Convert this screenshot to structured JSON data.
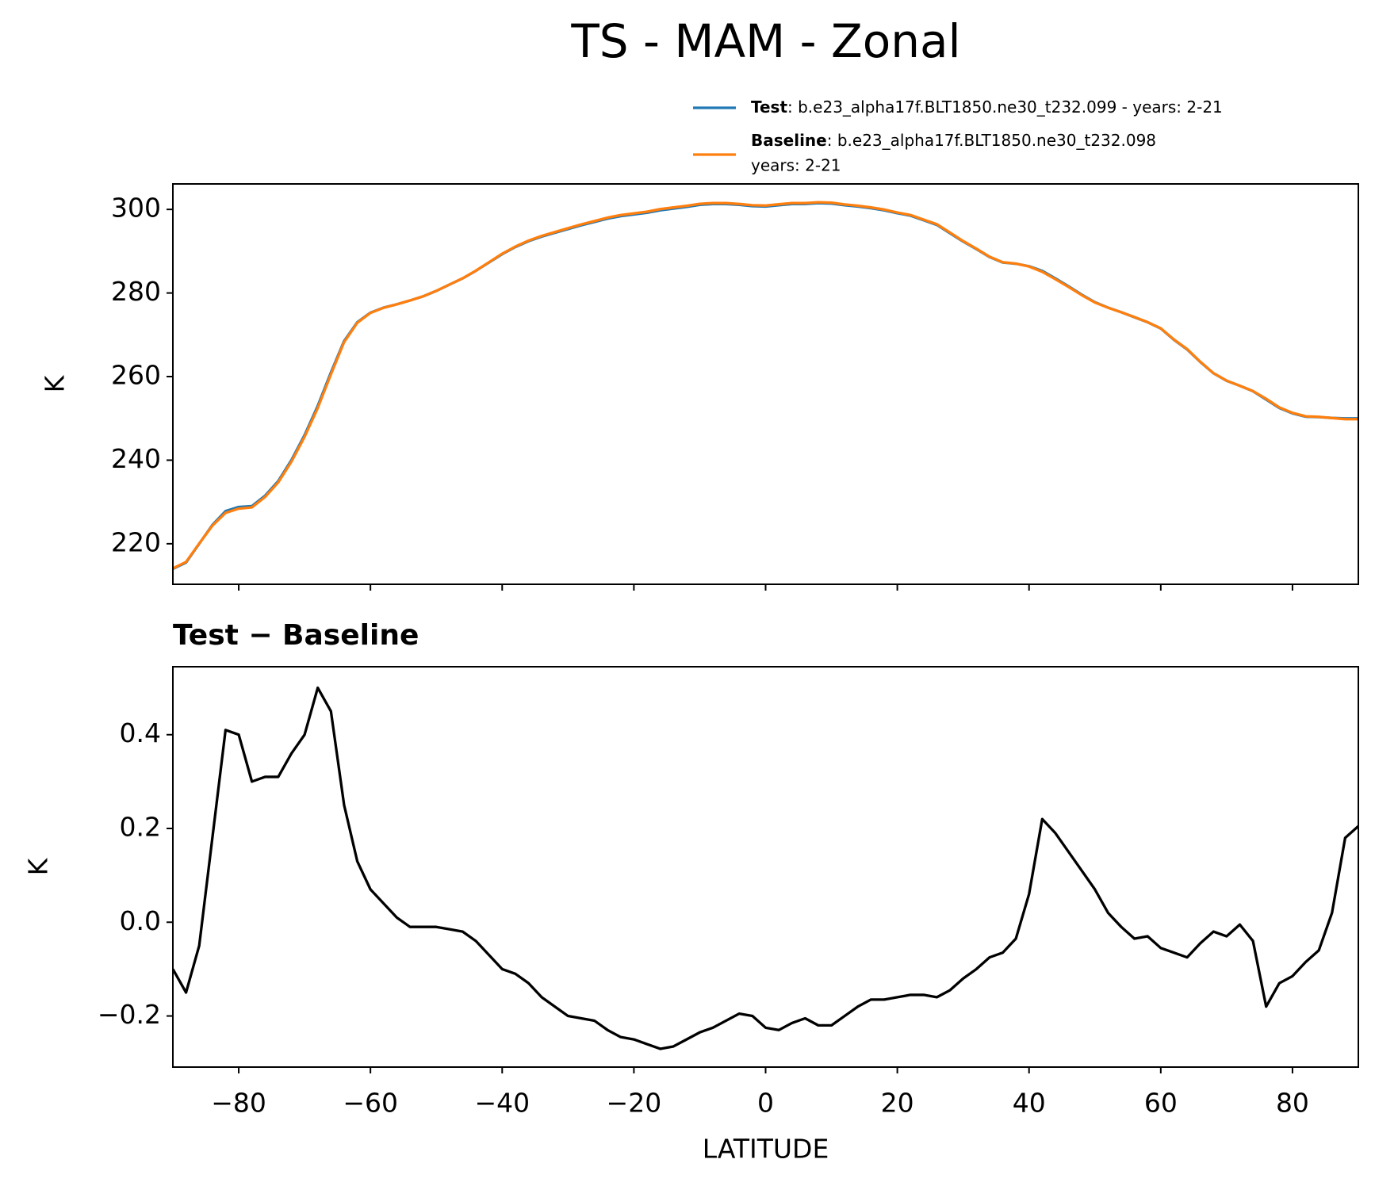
{
  "title": "TS - MAM - Zonal",
  "chart_data": [
    {
      "type": "line",
      "ylabel": "K",
      "xlim": [
        -90,
        90
      ],
      "ylim": [
        210.3,
        306.1
      ],
      "yticks": [
        220,
        240,
        260,
        280,
        300
      ],
      "x": [
        -90,
        -88,
        -86,
        -84,
        -82,
        -80,
        -78,
        -76,
        -74,
        -72,
        -70,
        -68,
        -66,
        -64,
        -62,
        -60,
        -58,
        -56,
        -54,
        -52,
        -50,
        -48,
        -46,
        -44,
        -42,
        -40,
        -38,
        -36,
        -34,
        -32,
        -30,
        -28,
        -26,
        -24,
        -22,
        -20,
        -18,
        -16,
        -14,
        -12,
        -10,
        -8,
        -6,
        -4,
        -2,
        0,
        2,
        4,
        6,
        8,
        10,
        12,
        14,
        16,
        18,
        20,
        22,
        24,
        26,
        28,
        30,
        32,
        34,
        36,
        38,
        40,
        42,
        44,
        46,
        48,
        50,
        52,
        54,
        56,
        58,
        60,
        62,
        64,
        66,
        68,
        70,
        72,
        74,
        76,
        78,
        80,
        82,
        84,
        86,
        88,
        90
      ],
      "series": [
        {
          "name": "Test",
          "details": [
            ": b.e23_alpha17f.BLT1850.ne30_t232.099 - years: 2-21"
          ],
          "color": "#1f77b4",
          "values": [
            214,
            215.5,
            220,
            224.5,
            227.8,
            228.8,
            229,
            231.5,
            235,
            240,
            246,
            253,
            261,
            268.5,
            273,
            275.3,
            276.5,
            277.3,
            278.2,
            279.2,
            280.5,
            282,
            283.5,
            285.3,
            287.3,
            289.3,
            291,
            292.4,
            293.5,
            294.4,
            295.3,
            296.2,
            297,
            297.8,
            298.4,
            298.8,
            299.2,
            299.8,
            300.2,
            300.6,
            301.1,
            301.3,
            301.3,
            301.1,
            300.8,
            300.7,
            301,
            301.3,
            301.3,
            301.5,
            301.4,
            301,
            300.7,
            300.3,
            299.8,
            299.1,
            298.5,
            297.4,
            296.3,
            294.3,
            292.3,
            290.5,
            288.6,
            287.3,
            287,
            286.4,
            285.3,
            283.5,
            281.6,
            279.6,
            277.8,
            276.5,
            275.4,
            274.2,
            273,
            271.5,
            268.8,
            266.5,
            263.5,
            260.8,
            259,
            257.8,
            256.5,
            254.5,
            252.5,
            251.2,
            250.4,
            250.3,
            250.1,
            250,
            250
          ]
        },
        {
          "name": "Baseline",
          "details": [
            ": b.e23_alpha17f.BLT1850.ne30_t232.098",
            "years: 2-21"
          ],
          "color": "#ff7f0e",
          "values": [
            214.1,
            215.65,
            220.05,
            224.32,
            227.39,
            228.4,
            228.7,
            231.19,
            234.69,
            239.64,
            245.6,
            252.5,
            260.55,
            268.25,
            272.87,
            275.23,
            276.46,
            277.29,
            278.21,
            279.21,
            280.51,
            282.02,
            283.52,
            285.34,
            287.37,
            289.4,
            291.11,
            292.53,
            293.66,
            294.58,
            295.5,
            296.41,
            297.21,
            298.03,
            298.65,
            299.05,
            299.46,
            300.07,
            300.47,
            300.85,
            301.34,
            301.53,
            301.51,
            301.3,
            301.0,
            300.93,
            301.23,
            301.52,
            301.51,
            301.72,
            301.62,
            301.2,
            300.88,
            300.47,
            299.97,
            299.26,
            298.66,
            297.56,
            296.46,
            294.45,
            292.42,
            290.6,
            288.68,
            287.37,
            287.04,
            286.34,
            285.08,
            283.31,
            281.45,
            279.49,
            277.73,
            276.48,
            275.41,
            274.24,
            273.03,
            271.56,
            268.87,
            266.58,
            263.55,
            260.82,
            259.03,
            257.81,
            256.54,
            254.68,
            252.63,
            251.32,
            250.49,
            250.36,
            250.08,
            249.82,
            249.8
          ]
        }
      ]
    },
    {
      "type": "line",
      "title": "Test − Baseline",
      "ylabel": "K",
      "xlabel": "LATITUDE",
      "xlim": [
        -90,
        90
      ],
      "xticks": [
        {
          "value": -80,
          "label": "−80"
        },
        {
          "value": -60,
          "label": "−60"
        },
        {
          "value": -40,
          "label": "−40"
        },
        {
          "value": -20,
          "label": "−20"
        },
        0,
        20,
        40,
        60,
        80
      ],
      "ylim": [
        -0.309,
        0.545
      ],
      "yticks": [
        {
          "value": -0.2,
          "label": "−0.2"
        },
        {
          "value": 0,
          "label": "0.0"
        },
        0.2,
        0.4
      ],
      "x": [
        -90,
        -88,
        -86,
        -84,
        -82,
        -80,
        -78,
        -76,
        -74,
        -72,
        -70,
        -68,
        -66,
        -64,
        -62,
        -60,
        -58,
        -56,
        -54,
        -52,
        -50,
        -48,
        -46,
        -44,
        -42,
        -40,
        -38,
        -36,
        -34,
        -32,
        -30,
        -28,
        -26,
        -24,
        -22,
        -20,
        -18,
        -16,
        -14,
        -12,
        -10,
        -8,
        -6,
        -4,
        -2,
        0,
        2,
        4,
        6,
        8,
        10,
        12,
        14,
        16,
        18,
        20,
        22,
        24,
        26,
        28,
        30,
        32,
        34,
        36,
        38,
        40,
        42,
        44,
        46,
        48,
        50,
        52,
        54,
        56,
        58,
        60,
        62,
        64,
        66,
        68,
        70,
        72,
        74,
        76,
        78,
        80,
        82,
        84,
        86,
        88,
        90
      ],
      "series": [
        {
          "color": "#000000",
          "values": [
            -0.1,
            -0.15,
            -0.05,
            0.18,
            0.41,
            0.4,
            0.3,
            0.31,
            0.31,
            0.36,
            0.4,
            0.5,
            0.45,
            0.25,
            0.13,
            0.07,
            0.04,
            0.01,
            -0.01,
            -0.01,
            -0.01,
            -0.015,
            -0.02,
            -0.04,
            -0.07,
            -0.1,
            -0.11,
            -0.13,
            -0.16,
            -0.18,
            -0.2,
            -0.205,
            -0.21,
            -0.23,
            -0.245,
            -0.25,
            -0.26,
            -0.27,
            -0.265,
            -0.25,
            -0.235,
            -0.225,
            -0.21,
            -0.195,
            -0.2,
            -0.225,
            -0.23,
            -0.215,
            -0.205,
            -0.22,
            -0.22,
            -0.2,
            -0.18,
            -0.165,
            -0.165,
            -0.16,
            -0.155,
            -0.155,
            -0.16,
            -0.145,
            -0.12,
            -0.1,
            -0.075,
            -0.065,
            -0.035,
            0.06,
            0.22,
            0.19,
            0.15,
            0.11,
            0.07,
            0.02,
            -0.01,
            -0.035,
            -0.03,
            -0.055,
            -0.065,
            -0.075,
            -0.045,
            -0.02,
            -0.03,
            -0.005,
            -0.04,
            -0.18,
            -0.13,
            -0.115,
            -0.085,
            -0.06,
            0.02,
            0.18,
            0.205
          ]
        }
      ]
    }
  ]
}
